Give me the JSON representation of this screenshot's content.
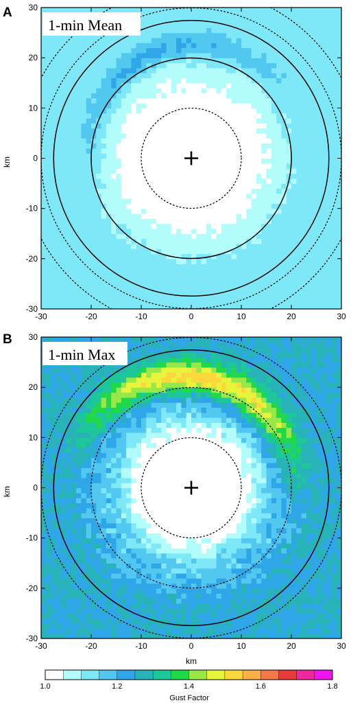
{
  "chart_data": [
    {
      "type": "heatmap",
      "panel_letter": "A",
      "title": "1-min Mean",
      "xlabel": "",
      "ylabel": "km",
      "xlim": [
        -30,
        30
      ],
      "ylim": [
        -30,
        30
      ],
      "xticks": [
        "-30",
        "-20",
        "-10",
        "0",
        "10",
        "20",
        "30"
      ],
      "yticks": [
        "30",
        "20",
        "10",
        "0",
        "-10",
        "-20",
        "-30"
      ],
      "center_marker": [
        0,
        0
      ],
      "circles_solid_km": [
        20,
        27.5
      ],
      "circles_dotted_km": [
        10,
        30,
        34
      ],
      "field_pattern": "mean"
    },
    {
      "type": "heatmap",
      "panel_letter": "B",
      "title": "1-min Max",
      "xlabel": "km",
      "ylabel": "km",
      "xlim": [
        -30,
        30
      ],
      "ylim": [
        -30,
        30
      ],
      "xticks": [
        "-30",
        "-20",
        "-10",
        "0",
        "10",
        "20",
        "30"
      ],
      "yticks": [
        "30",
        "20",
        "10",
        "0",
        "-10",
        "-20",
        "-30"
      ],
      "center_marker": [
        0,
        0
      ],
      "circles_solid_km": [
        27.5
      ],
      "circles_dotted_km": [
        10,
        20,
        30
      ],
      "field_pattern": "max"
    }
  ],
  "colorbar": {
    "label": "Gust Factor",
    "min": 1.0,
    "max": 1.8,
    "tick_labels": [
      "1.0",
      "1.2",
      "1.4",
      "1.6",
      "1.8"
    ],
    "colors": [
      "#ffffff",
      "#b3fcfc",
      "#7fe8f8",
      "#52c8f0",
      "#2fa6e8",
      "#27b3b8",
      "#1ec79a",
      "#20d848",
      "#98e84a",
      "#e8f43c",
      "#fcd83c",
      "#fcb048",
      "#f47848",
      "#e83c3c",
      "#f028a0",
      "#f014f0"
    ]
  }
}
